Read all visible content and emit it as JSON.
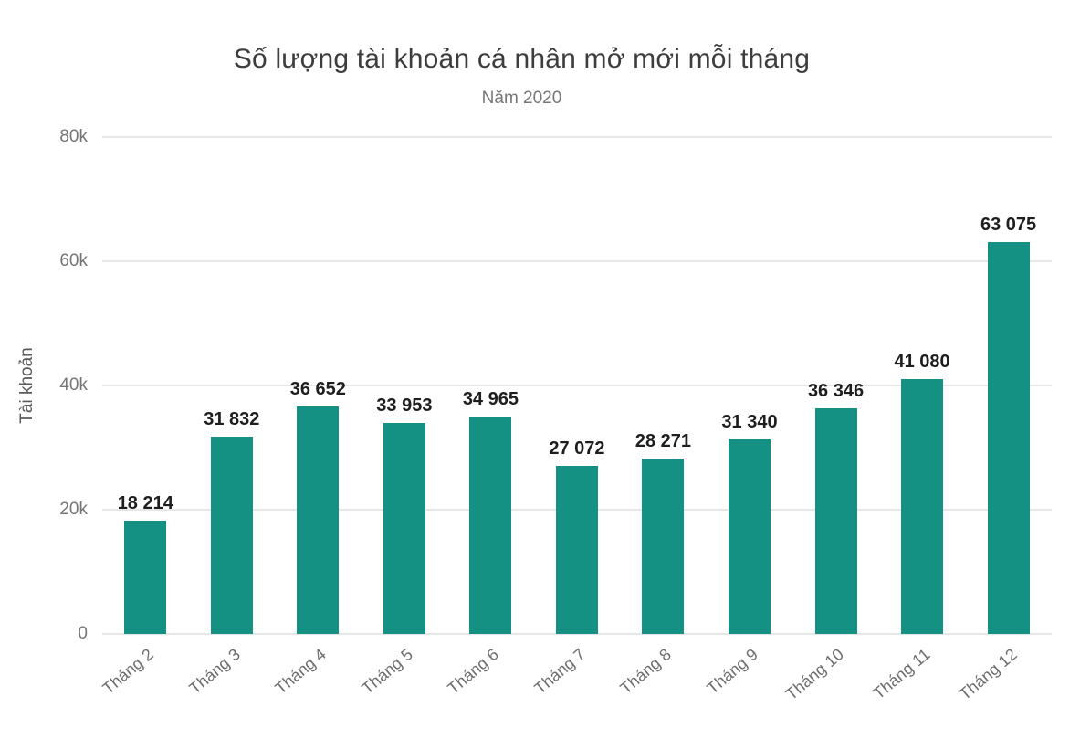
{
  "chart_data": {
    "type": "bar",
    "title": "Số lượng tài khoản cá nhân mở mới mỗi tháng",
    "subtitle": "Năm 2020",
    "xlabel": "",
    "ylabel": "Tài khoản",
    "categories": [
      "Tháng 2",
      "Tháng 3",
      "Tháng 4",
      "Tháng 5",
      "Tháng 6",
      "Tháng 7",
      "Tháng 8",
      "Tháng 9",
      "Tháng 10",
      "Tháng 11",
      "Tháng 12"
    ],
    "values": [
      18214,
      31832,
      36652,
      33953,
      34965,
      27072,
      28271,
      31340,
      36346,
      41080,
      63075
    ],
    "value_labels": [
      "18 214",
      "31 832",
      "36 652",
      "33 953",
      "34 965",
      "27 072",
      "28 271",
      "31 340",
      "36 346",
      "41 080",
      "63 075"
    ],
    "ylim": [
      0,
      80000
    ],
    "y_ticks": [
      {
        "label": "0",
        "value": 0
      },
      {
        "label": "20k",
        "value": 20000
      },
      {
        "label": "40k",
        "value": 40000
      },
      {
        "label": "60k",
        "value": 60000
      },
      {
        "label": "80k",
        "value": 80000
      }
    ],
    "grid": "horizontal",
    "legend": "none",
    "colors": {
      "bar": "#149183",
      "gridline": "#e7e7e7",
      "title_text": "#3d3d3d",
      "subtitle_text": "#767676",
      "axis_text": "#757575",
      "value_label_text": "#1e1e1e"
    }
  }
}
